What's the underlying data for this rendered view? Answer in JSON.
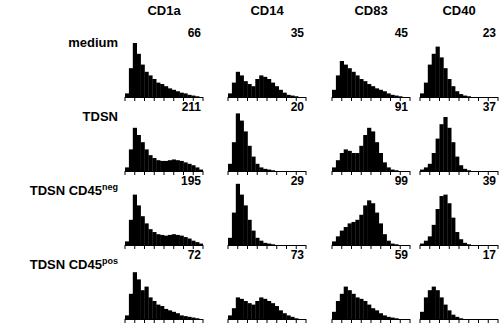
{
  "chart_data": {
    "type": "histogram",
    "color": "#000000",
    "ylim": [
      0,
      100
    ],
    "tick_labels": false,
    "columns": [
      "CD1a",
      "CD14",
      "CD83",
      "CD40"
    ],
    "rows": [
      {
        "label": "medium",
        "panels": [
          {
            "value": 66,
            "counts": [
              5,
              40,
              75,
              60,
              45,
              35,
              30,
              25,
              20,
              18,
              15,
              12,
              10,
              8,
              6,
              5,
              3,
              2,
              1,
              0
            ]
          },
          {
            "value": 35,
            "counts": [
              5,
              20,
              35,
              30,
              22,
              18,
              15,
              25,
              30,
              28,
              25,
              20,
              15,
              10,
              6,
              3,
              2,
              1,
              0,
              0
            ]
          },
          {
            "value": 45,
            "counts": [
              10,
              30,
              50,
              45,
              40,
              35,
              30,
              25,
              22,
              18,
              15,
              12,
              10,
              8,
              5,
              3,
              2,
              1,
              0,
              0
            ]
          },
          {
            "value": 23,
            "counts": [
              5,
              20,
              45,
              60,
              70,
              55,
              40,
              25,
              15,
              8,
              4,
              2,
              1,
              0,
              0,
              0,
              0,
              0,
              0,
              0
            ]
          }
        ]
      },
      {
        "label": "TDSN",
        "panels": [
          {
            "value": 211,
            "counts": [
              5,
              30,
              60,
              50,
              40,
              30,
              22,
              18,
              15,
              14,
              14,
              15,
              16,
              15,
              14,
              12,
              10,
              8,
              5,
              2
            ]
          },
          {
            "value": 20,
            "counts": [
              10,
              40,
              80,
              70,
              55,
              35,
              20,
              10,
              5,
              3,
              2,
              1,
              0,
              0,
              0,
              0,
              0,
              0,
              0,
              0
            ]
          },
          {
            "value": 91,
            "counts": [
              5,
              15,
              25,
              30,
              28,
              25,
              25,
              35,
              50,
              60,
              55,
              40,
              25,
              12,
              5,
              2,
              1,
              0,
              0,
              0
            ]
          },
          {
            "value": 37,
            "counts": [
              2,
              5,
              10,
              25,
              45,
              65,
              75,
              60,
              40,
              20,
              8,
              3,
              1,
              0,
              0,
              0,
              0,
              0,
              0,
              0
            ]
          }
        ]
      },
      {
        "label": "TDSN CD45",
        "label_sup": "neg",
        "panels": [
          {
            "value": 195,
            "counts": [
              5,
              35,
              70,
              55,
              40,
              30,
              22,
              18,
              15,
              14,
              13,
              14,
              15,
              14,
              13,
              11,
              9,
              6,
              4,
              2
            ]
          },
          {
            "value": 29,
            "counts": [
              10,
              45,
              85,
              70,
              55,
              35,
              20,
              10,
              6,
              3,
              2,
              1,
              0,
              0,
              0,
              0,
              0,
              0,
              0,
              0
            ]
          },
          {
            "value": 99,
            "counts": [
              5,
              12,
              20,
              25,
              30,
              32,
              35,
              42,
              55,
              62,
              58,
              45,
              30,
              15,
              6,
              2,
              1,
              0,
              0,
              0
            ]
          },
          {
            "value": 39,
            "counts": [
              2,
              6,
              12,
              28,
              50,
              68,
              70,
              58,
              38,
              18,
              8,
              3,
              1,
              0,
              0,
              0,
              0,
              0,
              0,
              0
            ]
          }
        ]
      },
      {
        "label": "TDSN  CD45",
        "label_sup": "pos",
        "panels": [
          {
            "value": 72,
            "counts": [
              5,
              35,
              65,
              55,
              40,
              45,
              30,
              25,
              20,
              18,
              14,
              12,
              10,
              8,
              5,
              4,
              3,
              2,
              1,
              0
            ]
          },
          {
            "value": 73,
            "counts": [
              5,
              15,
              30,
              28,
              25,
              22,
              20,
              25,
              30,
              28,
              25,
              22,
              18,
              12,
              8,
              5,
              3,
              1,
              0,
              0
            ]
          },
          {
            "value": 59,
            "counts": [
              10,
              25,
              35,
              45,
              40,
              35,
              30,
              28,
              25,
              20,
              15,
              12,
              8,
              5,
              3,
              2,
              1,
              0,
              0,
              0
            ]
          },
          {
            "value": 17,
            "counts": [
              10,
              30,
              40,
              45,
              40,
              30,
              20,
              12,
              6,
              3,
              1,
              0,
              0,
              0,
              0,
              0,
              0,
              0,
              0,
              0
            ]
          }
        ]
      }
    ]
  }
}
